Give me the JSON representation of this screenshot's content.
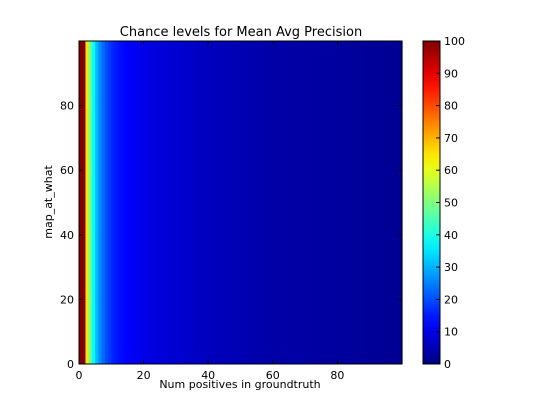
{
  "chart_data": {
    "type": "heatmap",
    "title": "Chance levels for Mean Avg Precision",
    "xlabel": "Num positives in groundtruth",
    "ylabel": "map_at_what",
    "xlim": [
      0,
      100
    ],
    "ylim": [
      0,
      100
    ],
    "x_ticks": [
      "0",
      "20",
      "40",
      "60",
      "80"
    ],
    "y_ticks": [
      "0",
      "20",
      "40",
      "60",
      "80"
    ],
    "colormap": "jet",
    "colorbar": {
      "range": [
        0,
        100
      ],
      "ticks": [
        "0",
        "10",
        "20",
        "30",
        "40",
        "50",
        "60",
        "70",
        "80",
        "90",
        "100"
      ]
    },
    "column_values": [
      {
        "x": 0,
        "value": 100
      },
      {
        "x": 1,
        "value": 100
      },
      {
        "x": 2,
        "value": 65
      },
      {
        "x": 3,
        "value": 48
      },
      {
        "x": 4,
        "value": 38
      },
      {
        "x": 5,
        "value": 31
      },
      {
        "x": 6,
        "value": 26
      },
      {
        "x": 7,
        "value": 23
      },
      {
        "x": 8,
        "value": 20
      },
      {
        "x": 9,
        "value": 18
      },
      {
        "x": 10,
        "value": 16
      },
      {
        "x": 12,
        "value": 14
      },
      {
        "x": 15,
        "value": 12
      },
      {
        "x": 20,
        "value": 10
      },
      {
        "x": 30,
        "value": 8
      },
      {
        "x": 40,
        "value": 6
      },
      {
        "x": 60,
        "value": 4
      },
      {
        "x": 80,
        "value": 3
      },
      {
        "x": 99,
        "value": 2
      }
    ]
  }
}
